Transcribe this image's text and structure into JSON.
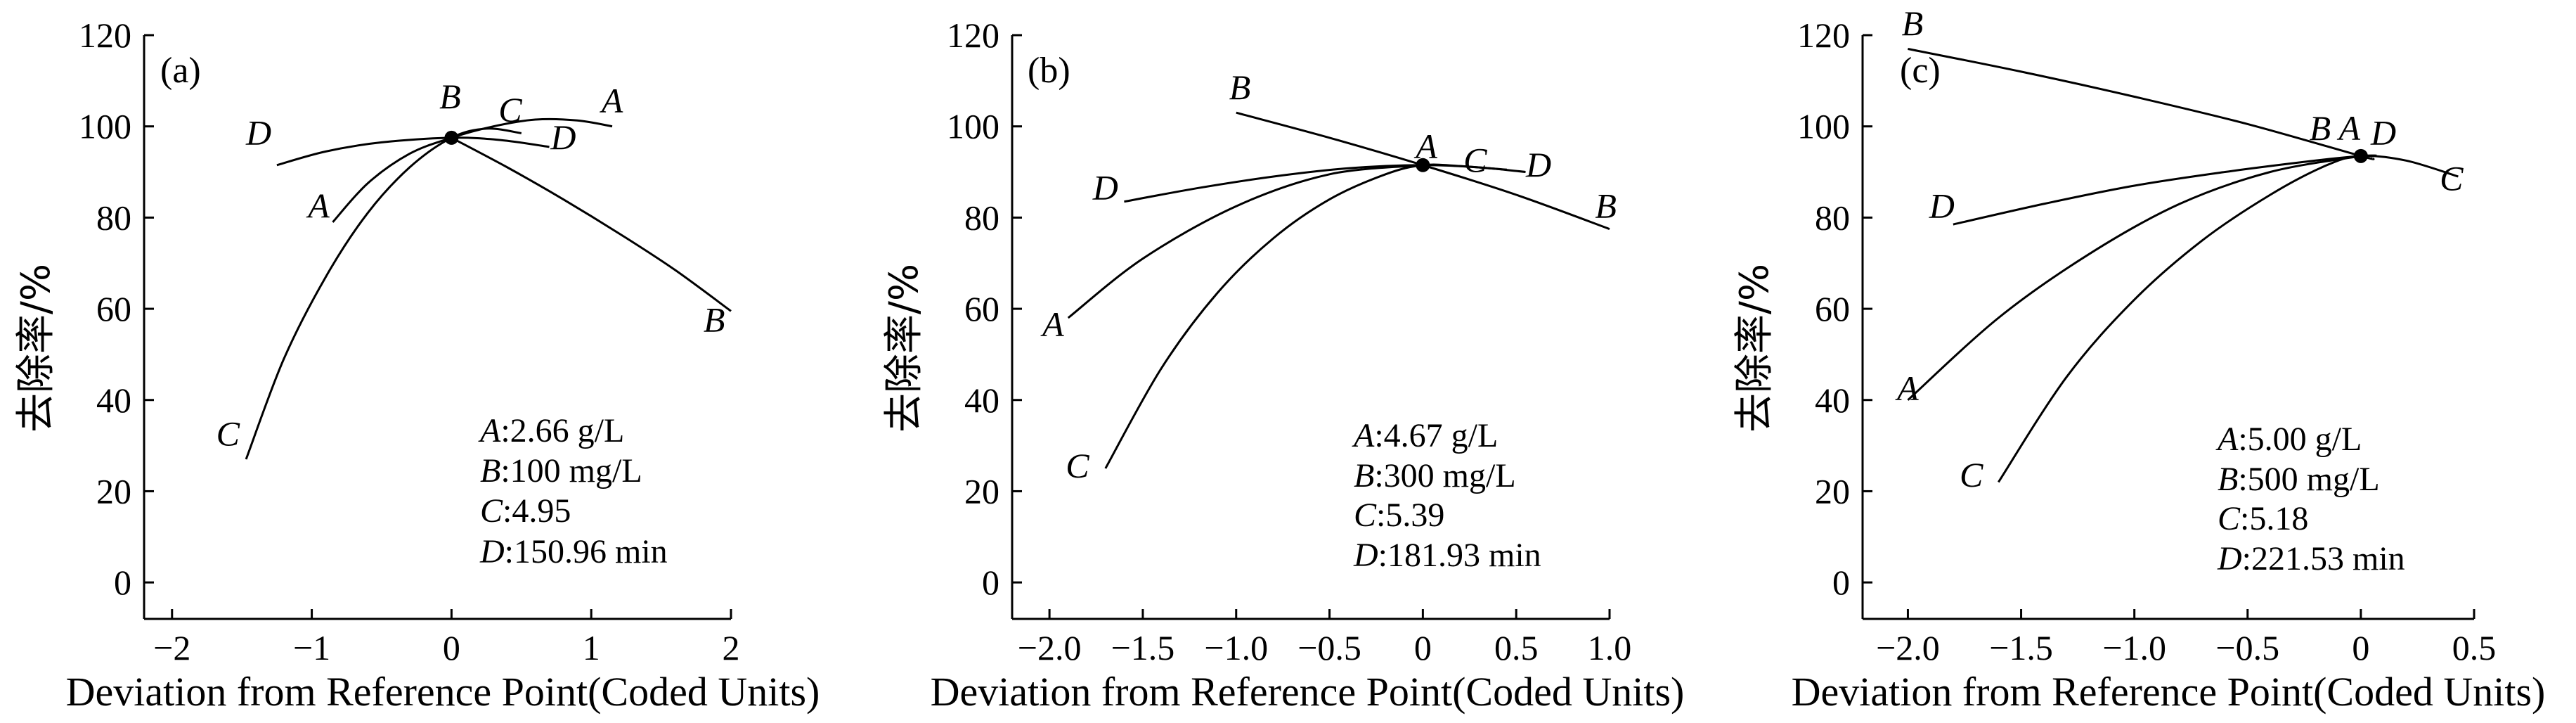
{
  "chart_data": [
    {
      "type": "line",
      "panel_label": "(a)",
      "xlabel": "Deviation from Reference Point(Coded Units)",
      "ylabel": "去除率/%",
      "xlim": [
        -2.2,
        2.0
      ],
      "ylim": [
        -8,
        120
      ],
      "xticks": [
        -2,
        -1,
        0,
        1,
        2
      ],
      "xtick_labels": [
        "−2",
        "−1",
        "0",
        "1",
        "2"
      ],
      "yticks": [
        0,
        20,
        40,
        60,
        80,
        100,
        120
      ],
      "ytick_labels": [
        "0",
        "20",
        "40",
        "60",
        "80",
        "100",
        "120"
      ],
      "reference_point": [
        0,
        97.5
      ],
      "series": [
        {
          "name": "A",
          "x": [
            -0.85,
            -0.6,
            -0.3,
            0,
            0.3,
            0.6,
            0.9,
            1.15
          ],
          "y": [
            79,
            87.5,
            94,
            97.5,
            100,
            101.5,
            101.3,
            100
          ]
        },
        {
          "name": "B",
          "x": [
            0,
            0.4,
            0.8,
            1.2,
            1.6,
            2.0
          ],
          "y": [
            97.5,
            91,
            84,
            76.5,
            68.5,
            59.5
          ]
        },
        {
          "name": "C",
          "x": [
            -1.47,
            -1.2,
            -0.9,
            -0.6,
            -0.3,
            0,
            0.25,
            0.5
          ],
          "y": [
            27,
            49,
            67,
            81,
            91,
            97.5,
            99.5,
            98.5
          ]
        },
        {
          "name": "D",
          "x": [
            -1.25,
            -0.9,
            -0.5,
            0,
            0.35,
            0.7
          ],
          "y": [
            91.5,
            94.5,
            96.5,
            97.5,
            97,
            95.5
          ]
        }
      ],
      "series_label_positions": [
        {
          "name": "A",
          "x": -0.95,
          "y": 80
        },
        {
          "name": "B",
          "x": 1.88,
          "y": 55
        },
        {
          "name": "C",
          "x": -1.6,
          "y": 30
        },
        {
          "name": "D",
          "x": -1.38,
          "y": 96
        },
        {
          "name": "B",
          "x": -0.01,
          "y": 104
        },
        {
          "name": "C",
          "x": 0.42,
          "y": 101
        },
        {
          "name": "A",
          "x": 1.15,
          "y": 103
        },
        {
          "name": "D",
          "x": 0.8,
          "y": 95
        }
      ],
      "annotations": [
        {
          "var": "A",
          "text": ":2.66 g/L"
        },
        {
          "var": "B",
          "text": ":100 mg/L"
        },
        {
          "var": "C",
          "text": ":4.95"
        },
        {
          "var": "D",
          "text": ":150.96 min"
        }
      ]
    },
    {
      "type": "line",
      "panel_label": "(b)",
      "xlabel": "Deviation from Reference Point(Coded Units)",
      "ylabel": "去除率/%",
      "xlim": [
        -2.2,
        1.0
      ],
      "ylim": [
        -8,
        120
      ],
      "xticks": [
        -2.0,
        -1.5,
        -1.0,
        -0.5,
        0,
        0.5,
        1.0
      ],
      "xtick_labels": [
        "−2.0",
        "−1.5",
        "−1.0",
        "−0.5",
        "0",
        "0.5",
        "1.0"
      ],
      "yticks": [
        0,
        20,
        40,
        60,
        80,
        100,
        120
      ],
      "ytick_labels": [
        "0",
        "20",
        "40",
        "60",
        "80",
        "100",
        "120"
      ],
      "reference_point": [
        0,
        91.5
      ],
      "series": [
        {
          "name": "A",
          "x": [
            -1.9,
            -1.5,
            -1.0,
            -0.5,
            0
          ],
          "y": [
            58,
            71,
            82.5,
            89.5,
            91.5
          ]
        },
        {
          "name": "B",
          "x": [
            -1.0,
            -0.5,
            0,
            0.5,
            1.0
          ],
          "y": [
            103,
            97.5,
            91.5,
            85,
            77.5
          ]
        },
        {
          "name": "C",
          "x": [
            -1.7,
            -1.4,
            -1.1,
            -0.8,
            -0.5,
            -0.2,
            0,
            0.2,
            0.45
          ],
          "y": [
            25,
            47,
            63.5,
            75.5,
            84,
            89.5,
            91.5,
            91.3,
            90.5
          ]
        },
        {
          "name": "D",
          "x": [
            -1.6,
            -1.2,
            -0.8,
            -0.4,
            0,
            0.3,
            0.55
          ],
          "y": [
            83.5,
            86.5,
            89,
            90.8,
            91.5,
            91,
            90
          ]
        }
      ],
      "series_label_positions": [
        {
          "name": "A",
          "x": -1.98,
          "y": 54
        },
        {
          "name": "B",
          "x": 0.98,
          "y": 80
        },
        {
          "name": "C",
          "x": -1.85,
          "y": 23
        },
        {
          "name": "D",
          "x": -1.7,
          "y": 84
        },
        {
          "name": "B",
          "x": -0.98,
          "y": 106
        },
        {
          "name": "A",
          "x": 0.02,
          "y": 93
        },
        {
          "name": "C",
          "x": 0.28,
          "y": 90
        },
        {
          "name": "D",
          "x": 0.62,
          "y": 89
        }
      ],
      "annotations": [
        {
          "var": "A",
          "text": ":4.67 g/L"
        },
        {
          "var": "B",
          "text": ":300 mg/L"
        },
        {
          "var": "C",
          "text": ":5.39"
        },
        {
          "var": "D",
          "text": ":181.93 min"
        }
      ]
    },
    {
      "type": "line",
      "panel_label": "(c)",
      "xlabel": "Deviation from Reference Point(Coded Units)",
      "ylabel": "去除率/%",
      "xlim": [
        -2.2,
        0.5
      ],
      "ylim": [
        -8,
        120
      ],
      "xticks": [
        -2.0,
        -1.5,
        -1.0,
        -0.5,
        0,
        0.5
      ],
      "xtick_labels": [
        "−2.0",
        "−1.5",
        "−1.0",
        "−0.5",
        "0",
        "0.5"
      ],
      "yticks": [
        0,
        20,
        40,
        60,
        80,
        100,
        120
      ],
      "ytick_labels": [
        "0",
        "20",
        "40",
        "60",
        "80",
        "100",
        "120"
      ],
      "reference_point": [
        0,
        93.5
      ],
      "series": [
        {
          "name": "A",
          "x": [
            -2.0,
            -1.6,
            -1.2,
            -0.8,
            -0.4,
            0
          ],
          "y": [
            40,
            58,
            72,
            83,
            90,
            93.5
          ]
        },
        {
          "name": "B",
          "x": [
            -2.0,
            -1.5,
            -1.0,
            -0.5,
            0,
            0.05
          ],
          "y": [
            117,
            112,
            106.5,
            100.5,
            93.5,
            93
          ]
        },
        {
          "name": "C",
          "x": [
            -1.6,
            -1.3,
            -1.0,
            -0.7,
            -0.4,
            -0.15,
            0,
            0.2,
            0.43
          ],
          "y": [
            22,
            45,
            62,
            75,
            85,
            91.5,
            93.5,
            92.5,
            89
          ]
        },
        {
          "name": "D",
          "x": [
            -1.8,
            -1.4,
            -1.0,
            -0.6,
            -0.2,
            0,
            0.07
          ],
          "y": [
            78.5,
            83,
            87,
            90,
            92.5,
            93.5,
            93.6
          ]
        }
      ],
      "series_label_positions": [
        {
          "name": "B",
          "x": -1.98,
          "y": 120
        },
        {
          "name": "A",
          "x": -2.0,
          "y": 40
        },
        {
          "name": "C",
          "x": -1.72,
          "y": 21
        },
        {
          "name": "D",
          "x": -1.85,
          "y": 80
        },
        {
          "name": "C",
          "x": 0.4,
          "y": 86
        },
        {
          "name": "B",
          "x": -0.18,
          "y": 97
        },
        {
          "name": "A",
          "x": -0.05,
          "y": 97
        },
        {
          "name": "D",
          "x": 0.1,
          "y": 96
        }
      ],
      "annotations": [
        {
          "var": "A",
          "text": ":5.00 g/L"
        },
        {
          "var": "B",
          "text": ":500 mg/L"
        },
        {
          "var": "C",
          "text": ":5.18"
        },
        {
          "var": "D",
          "text": ":221.53 min"
        }
      ]
    }
  ]
}
